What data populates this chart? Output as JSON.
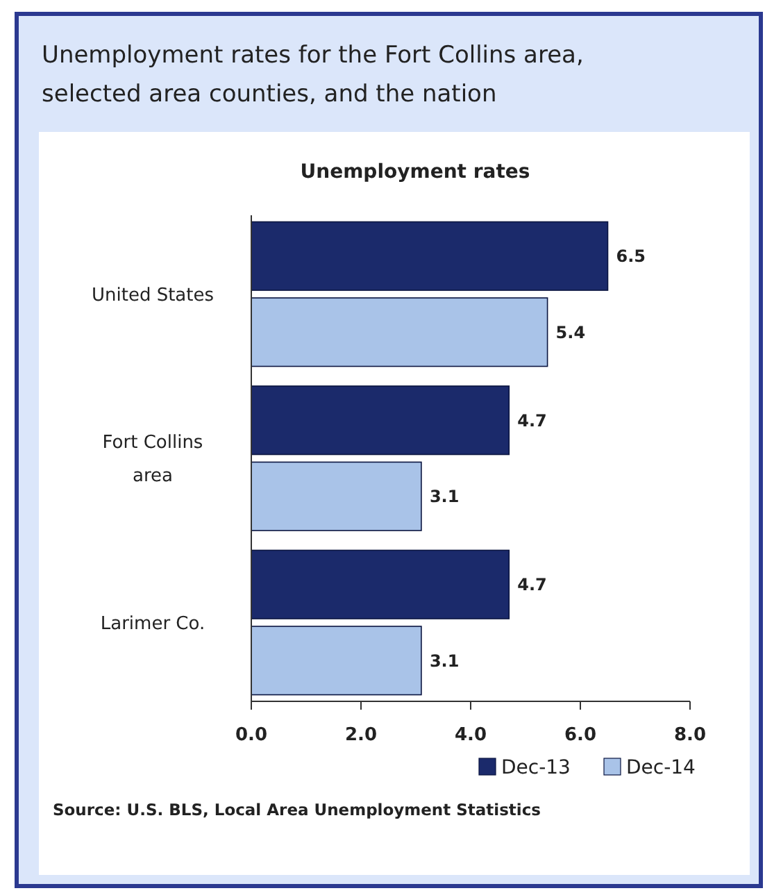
{
  "chart_data": {
    "type": "bar",
    "orientation": "horizontal",
    "title": "Unemployment rates for the Fort Collins area, selected area counties, and the nation",
    "subtitle": "Unemployment rates",
    "categories": [
      "United States",
      "Fort Collins area",
      "Larimer Co."
    ],
    "series": [
      {
        "name": "Dec-13",
        "color": "#1b2a6b",
        "values": [
          6.5,
          4.7,
          4.7
        ]
      },
      {
        "name": "Dec-14",
        "color": "#a9c3e8",
        "values": [
          5.4,
          3.1,
          3.1
        ]
      }
    ],
    "xlim": [
      0,
      8
    ],
    "xticks": [
      {
        "value": 0,
        "label": "0.0"
      },
      {
        "value": 2,
        "label": "2.0"
      },
      {
        "value": 4,
        "label": "4.0"
      },
      {
        "value": 6,
        "label": "6.0"
      },
      {
        "value": 8,
        "label": "8.0"
      }
    ],
    "data_labels": true,
    "grid": false,
    "legend": "bottom right",
    "annotations": [
      "Source: U.S. BLS, Local Area Unemployment Statistics"
    ]
  }
}
